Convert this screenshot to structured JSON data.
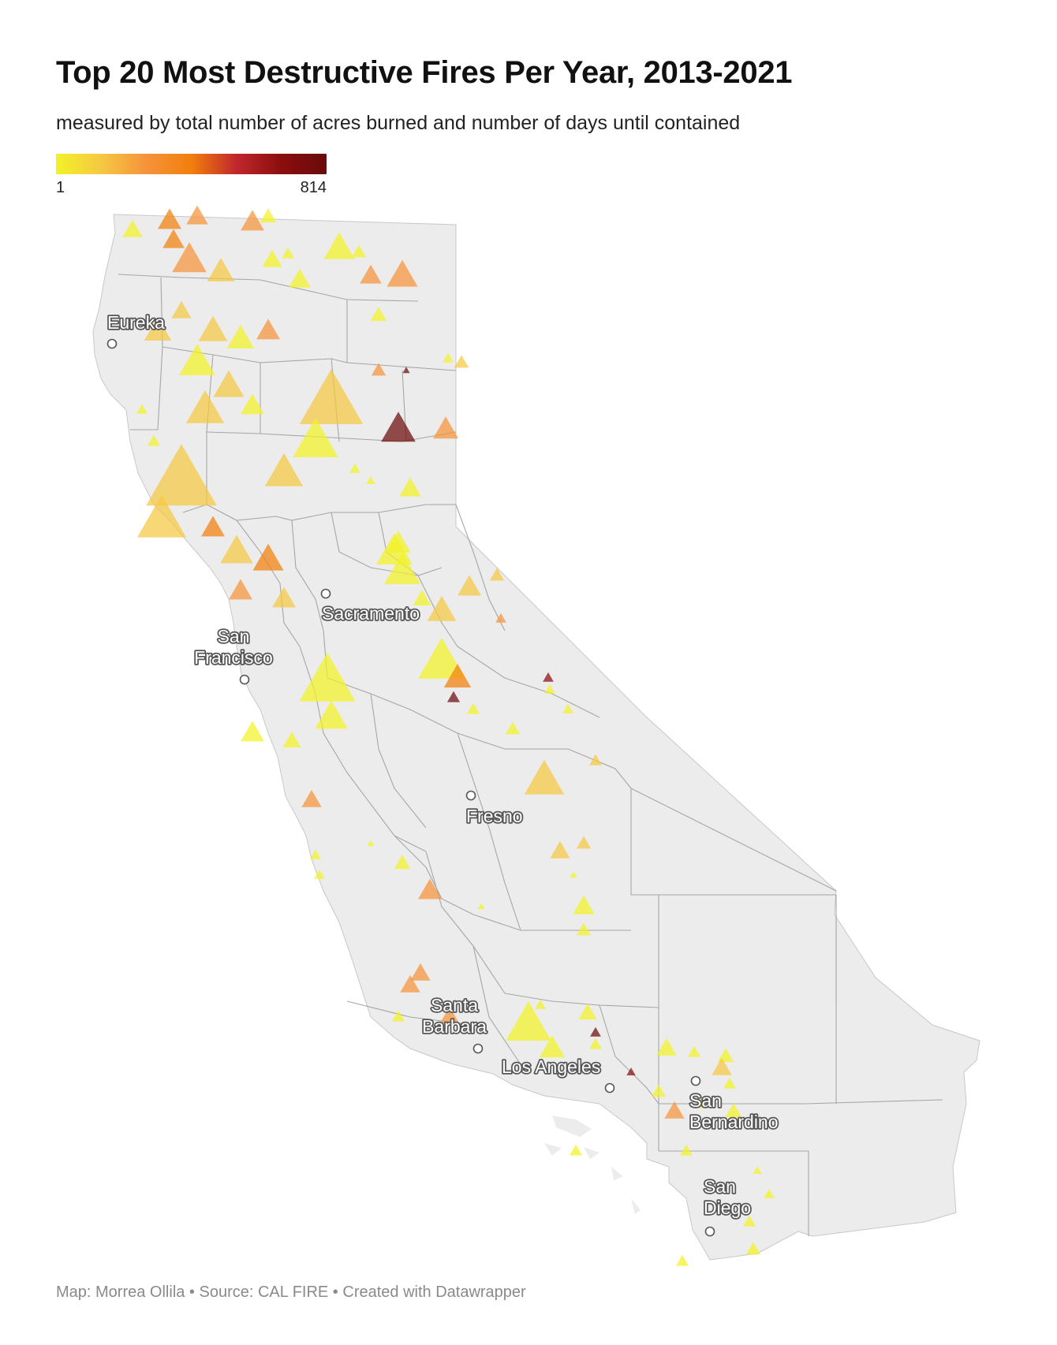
{
  "title": "Top 20 Most Destructive Fires Per Year, 2013-2021",
  "subtitle": "measured by total number of acres burned and number of days until contained",
  "legend": {
    "min_label": "1",
    "max_label": "814",
    "colors": [
      "#f2f226",
      "#f5c842",
      "#f5933a",
      "#f27f0c",
      "#c1272d",
      "#8a0e0e",
      "#6b0a0a"
    ]
  },
  "cities": [
    {
      "name": "Eureka",
      "lines": [
        "Eureka"
      ]
    },
    {
      "name": "Sacramento",
      "lines": [
        "Sacramento"
      ]
    },
    {
      "name": "San Francisco",
      "lines": [
        "San",
        "Francisco"
      ]
    },
    {
      "name": "Fresno",
      "lines": [
        "Fresno"
      ]
    },
    {
      "name": "Santa Barbara",
      "lines": [
        "Santa",
        "Barbara"
      ]
    },
    {
      "name": "Los Angeles",
      "lines": [
        "Los Angeles"
      ]
    },
    {
      "name": "San Bernardino",
      "lines": [
        "San",
        "Bernardino"
      ]
    },
    {
      "name": "San Diego",
      "lines": [
        "San",
        "Diego"
      ]
    }
  ],
  "map_style": {
    "land_color": "#ececec",
    "county_line_color": "#8e8e8e",
    "marker_shape": "triangle",
    "marker_opacity": 0.72
  },
  "footer": "Map: Morrea Ollila  • Source: CAL FIRE • Created with Datawrapper"
}
